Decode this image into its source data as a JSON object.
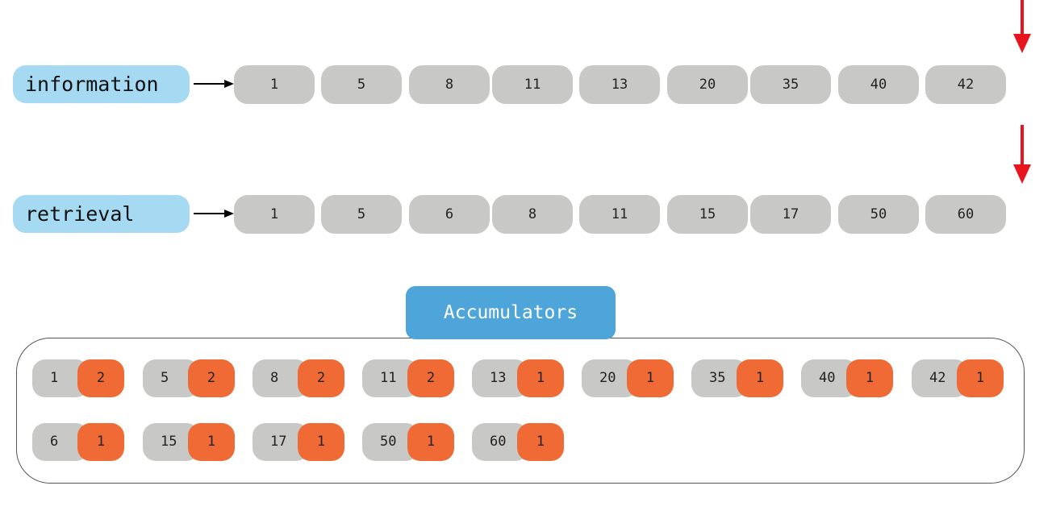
{
  "lists": [
    {
      "term": "information",
      "postings": [
        "1",
        "5",
        "8",
        "11",
        "13",
        "20",
        "35",
        "40",
        "42"
      ]
    },
    {
      "term": "retrieval",
      "postings": [
        "1",
        "5",
        "6",
        "8",
        "11",
        "15",
        "17",
        "50",
        "60"
      ]
    }
  ],
  "accumulators": {
    "label": "Accumulators",
    "rows": [
      [
        {
          "doc": "1",
          "score": "2"
        },
        {
          "doc": "5",
          "score": "2"
        },
        {
          "doc": "8",
          "score": "2"
        },
        {
          "doc": "11",
          "score": "2"
        },
        {
          "doc": "13",
          "score": "1"
        },
        {
          "doc": "20",
          "score": "1"
        },
        {
          "doc": "35",
          "score": "1"
        },
        {
          "doc": "40",
          "score": "1"
        },
        {
          "doc": "42",
          "score": "1"
        }
      ],
      [
        {
          "doc": "6",
          "score": "1"
        },
        {
          "doc": "15",
          "score": "1"
        },
        {
          "doc": "17",
          "score": "1"
        },
        {
          "doc": "50",
          "score": "1"
        },
        {
          "doc": "60",
          "score": "1"
        }
      ]
    ]
  },
  "colors": {
    "term_bg": "#a6d9f2",
    "posting_bg": "#c8c8c6",
    "score_bg": "#ef6a35",
    "label_bg": "#4ea5d9",
    "pointer_arrow": "#e8141e"
  }
}
